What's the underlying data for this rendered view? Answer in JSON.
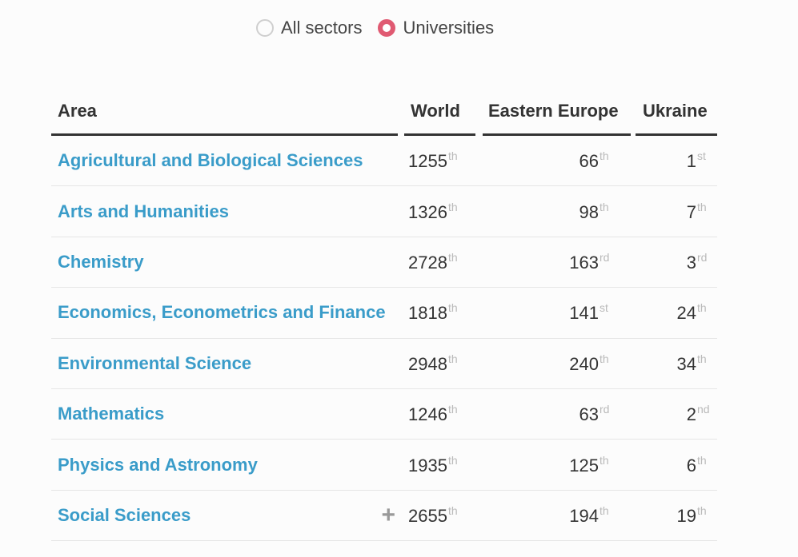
{
  "toggle": {
    "options": [
      {
        "label": "All sectors",
        "selected": false
      },
      {
        "label": "Universities",
        "selected": true
      }
    ]
  },
  "table": {
    "headers": {
      "area": "Area",
      "world": "World",
      "eastern_europe": "Eastern Europe",
      "ukraine": "Ukraine"
    },
    "rows": [
      {
        "area": "Agricultural and Biological Sciences",
        "world": "1255",
        "world_suf": "th",
        "ee": "66",
        "ee_suf": "th",
        "ua": "1",
        "ua_suf": "st"
      },
      {
        "area": "Arts and Humanities",
        "world": "1326",
        "world_suf": "th",
        "ee": "98",
        "ee_suf": "th",
        "ua": "7",
        "ua_suf": "th"
      },
      {
        "area": "Chemistry",
        "world": "2728",
        "world_suf": "th",
        "ee": "163",
        "ee_suf": "rd",
        "ua": "3",
        "ua_suf": "rd"
      },
      {
        "area": "Economics, Econometrics and Finance",
        "world": "1818",
        "world_suf": "th",
        "ee": "141",
        "ee_suf": "st",
        "ua": "24",
        "ua_suf": "th"
      },
      {
        "area": "Environmental Science",
        "world": "2948",
        "world_suf": "th",
        "ee": "240",
        "ee_suf": "th",
        "ua": "34",
        "ua_suf": "th"
      },
      {
        "area": "Mathematics",
        "world": "1246",
        "world_suf": "th",
        "ee": "63",
        "ee_suf": "rd",
        "ua": "2",
        "ua_suf": "nd"
      },
      {
        "area": "Physics and Astronomy",
        "world": "1935",
        "world_suf": "th",
        "ee": "125",
        "ee_suf": "th",
        "ua": "6",
        "ua_suf": "th"
      },
      {
        "area": "Social Sciences",
        "world": "2655",
        "world_suf": "th",
        "ee": "194",
        "ee_suf": "th",
        "ua": "19",
        "ua_suf": "th",
        "expandable": true
      }
    ]
  },
  "colors": {
    "link": "#3a9cc9",
    "accent": "#e05a72",
    "suffix": "#b9b9b9"
  },
  "icons": {
    "expand": "plus-icon"
  }
}
